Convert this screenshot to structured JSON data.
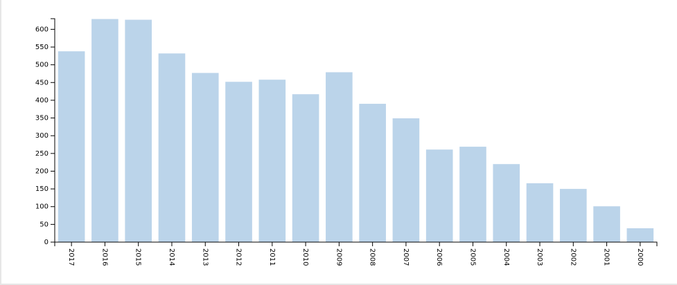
{
  "chart_data": {
    "type": "bar",
    "categories": [
      "2017",
      "2016",
      "2015",
      "2014",
      "2013",
      "2012",
      "2011",
      "2010",
      "2009",
      "2008",
      "2007",
      "2006",
      "2005",
      "2004",
      "2003",
      "2002",
      "2001",
      "2000"
    ],
    "values": [
      538,
      629,
      627,
      532,
      477,
      452,
      458,
      417,
      479,
      390,
      349,
      261,
      269,
      220,
      166,
      150,
      101,
      39
    ],
    "color": "#bbd4ea",
    "ylim": [
      0,
      630
    ],
    "yticks": [
      0,
      50,
      100,
      150,
      200,
      250,
      300,
      350,
      400,
      450,
      500,
      550,
      600
    ]
  }
}
